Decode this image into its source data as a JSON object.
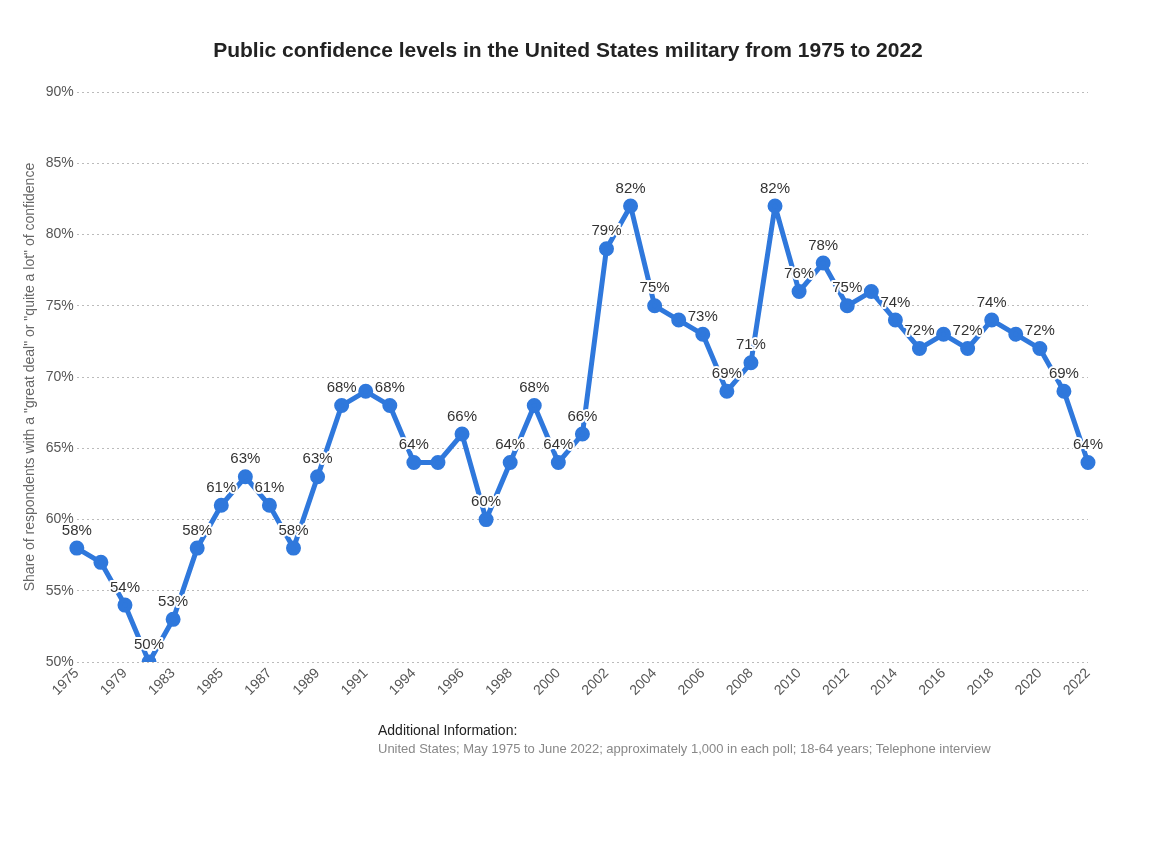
{
  "chart_data": {
    "type": "line",
    "title": "Public confidence levels in the United States military from 1975 to 2022",
    "ylabel": "Share of respondents with a \"great deal\" or \"quite a lot\" of confidence",
    "categories": [
      "1975",
      null,
      "1979",
      null,
      "1983",
      null,
      "1985",
      null,
      "1987",
      null,
      "1989",
      null,
      "1991",
      null,
      "1994",
      null,
      "1996",
      null,
      "1998",
      null,
      "2000",
      null,
      "2002",
      null,
      "2004",
      null,
      "2006",
      null,
      "2008",
      null,
      "2010",
      null,
      "2012",
      null,
      "2014",
      null,
      "2016",
      null,
      "2018",
      null,
      "2020",
      null,
      "2022"
    ],
    "series": [
      {
        "color": "#2f78dc",
        "values": [
          58,
          57,
          54,
          50,
          53,
          58,
          61,
          63,
          61,
          58,
          63,
          68,
          69,
          68,
          64,
          64,
          66,
          60,
          64,
          68,
          64,
          66,
          79,
          82,
          75,
          74,
          73,
          69,
          71,
          82,
          76,
          78,
          75,
          76,
          74,
          72,
          73,
          72,
          74,
          73,
          72,
          69,
          64
        ],
        "value_labels": [
          "58%",
          null,
          "54%",
          "50%",
          "53%",
          "58%",
          "61%",
          "63%",
          "61%",
          "58%",
          "63%",
          "68%",
          null,
          "68%",
          "64%",
          null,
          "66%",
          "60%",
          "64%",
          "68%",
          "64%",
          "66%",
          "79%",
          "82%",
          "75%",
          null,
          "73%",
          "69%",
          "71%",
          "82%",
          "76%",
          "78%",
          "75%",
          null,
          "74%",
          "72%",
          null,
          "72%",
          "74%",
          null,
          "72%",
          "69%",
          "64%"
        ]
      }
    ],
    "ylim": [
      50,
      90
    ],
    "yticks": [
      {
        "value": 50,
        "label": "50%"
      },
      {
        "value": 55,
        "label": "55%"
      },
      {
        "value": 60,
        "label": "60%"
      },
      {
        "value": 65,
        "label": "65%"
      },
      {
        "value": 70,
        "label": "70%"
      },
      {
        "value": 75,
        "label": "75%"
      },
      {
        "value": 80,
        "label": "80%"
      },
      {
        "value": 85,
        "label": "85%"
      },
      {
        "value": 90,
        "label": "90%"
      }
    ],
    "grid": "y",
    "legend": false,
    "marker": "circle",
    "line_style": "solid",
    "annotations": [
      "Additional Information:",
      "United States; May 1975 to June 2022; approximately 1,000 in each poll; 18-64 years; Telephone interview"
    ]
  }
}
